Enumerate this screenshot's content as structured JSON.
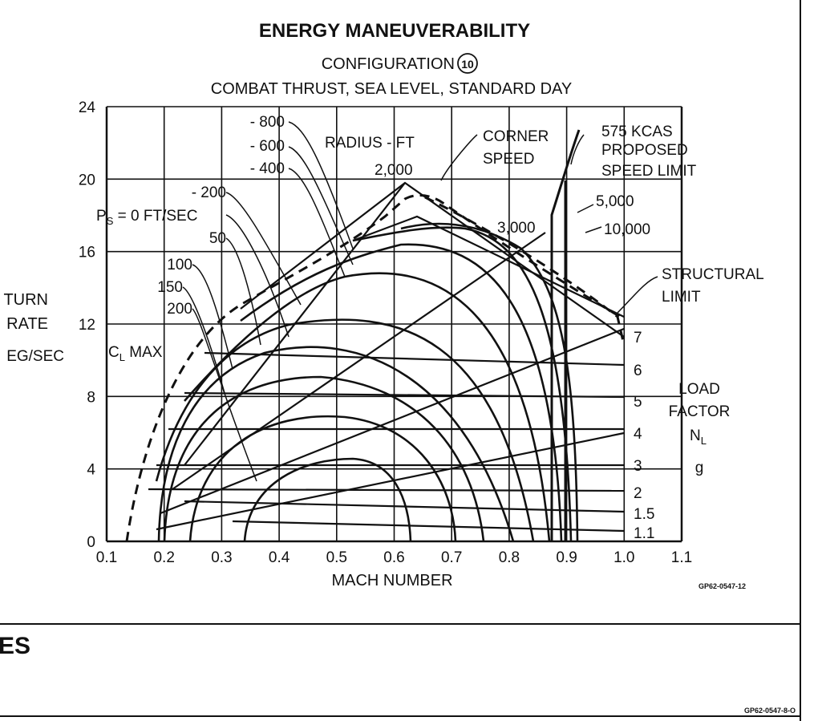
{
  "chart_data": {
    "type": "line",
    "title": "ENERGY MANEUVERABILITY",
    "subtitle_1": "CONFIGURATION",
    "configuration_number": "10",
    "subtitle_2": "COMBAT THRUST, SEA LEVEL, STANDARD DAY",
    "xlabel": "MACH NUMBER",
    "ylabel_lines": [
      "TURN",
      "RATE",
      "EG/SEC"
    ],
    "xlim": [
      0.1,
      1.1
    ],
    "ylim": [
      0,
      24
    ],
    "x_ticks": [
      "0.1",
      "0.2",
      "0.3",
      "0.4",
      "0.5",
      "0.6",
      "0.7",
      "0.8",
      "0.9",
      "1.0",
      "1.1"
    ],
    "y_ticks": [
      "0",
      "4",
      "8",
      "12",
      "16",
      "20",
      "24"
    ],
    "grid": true,
    "ps_label": {
      "prefix": "P",
      "sub": "S",
      "suffix": " = 0 FT/SEC"
    },
    "ps_labels": [
      "- 800",
      "- 600",
      "- 400",
      "- 200",
      "50",
      "100",
      "150",
      "200"
    ],
    "radius_title": "RADIUS - FT",
    "radius_labels": [
      "2,000",
      "3,000",
      "5,000",
      "10,000"
    ],
    "corner_speed_lines": [
      "CORNER",
      "SPEED"
    ],
    "speed_limit_lines": [
      "575 KCAS",
      "PROPOSED",
      "SPEED LIMIT"
    ],
    "structural_limit_lines": [
      "STRUCTURAL",
      "LIMIT"
    ],
    "cl_max": {
      "prefix": "C",
      "sub": "L",
      "suffix": " MAX"
    },
    "load_factor_lines": [
      "LOAD",
      "FACTOR"
    ],
    "load_factor_symbol": {
      "prefix": "N",
      "sub": "L"
    },
    "load_factor_unit": "g",
    "load_factor_labels": [
      "7",
      "6",
      "5",
      "4",
      "3",
      "2",
      "1.5",
      "1.1"
    ],
    "load_factor_values": [
      7,
      6,
      5,
      4,
      3,
      2,
      1.5,
      1.1
    ],
    "figure_code": "GP62-0547-12"
  },
  "section_heading": "ES",
  "footer_code": "GP62-0547-8-O"
}
